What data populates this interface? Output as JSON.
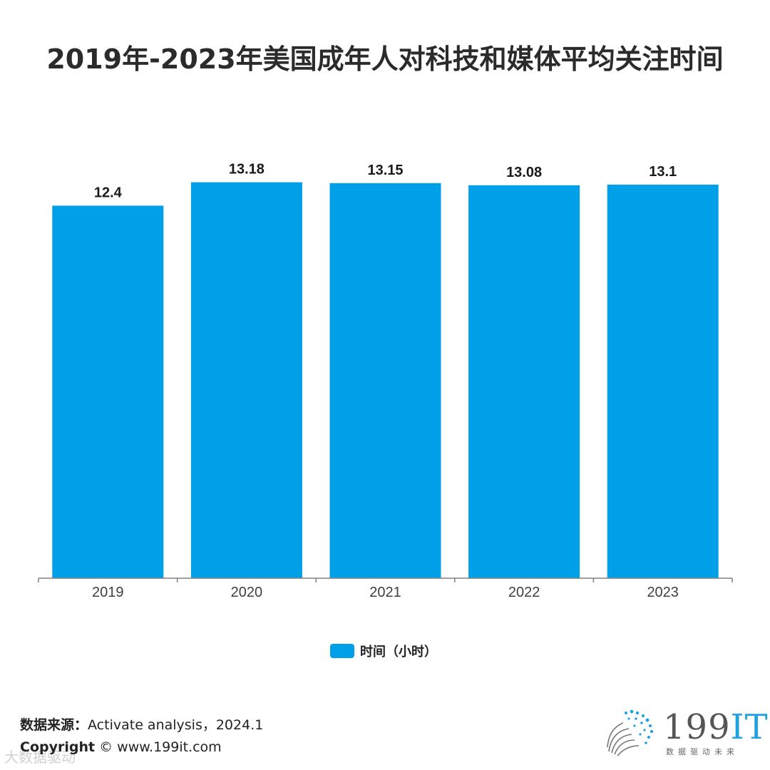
{
  "title": "2019年-2023年美国成年人对科技和媒体平均关注时间",
  "chart_data": {
    "type": "bar",
    "title": "2019年-2023年美国成年人对科技和媒体平均关注时间",
    "categories": [
      "2019",
      "2020",
      "2021",
      "2022",
      "2023"
    ],
    "series": [
      {
        "name": "时间（小时）",
        "values": [
          12.4,
          13.18,
          13.15,
          13.08,
          13.1
        ],
        "labels": [
          "12.4",
          "13.18",
          "13.15",
          "13.08",
          "13.1"
        ]
      }
    ],
    "xlabel": "",
    "ylabel": "",
    "ylim": [
      0,
      14.5
    ],
    "grid": false,
    "legend": "bottom-center",
    "color": "#00a0e9"
  },
  "legend": {
    "label": "时间（小时）"
  },
  "footer": {
    "source_label": "数据来源：",
    "source_text": "Activate analysis，2024.1",
    "copyright_label": "Copyright",
    "copyright_text": "©  www.199it.com",
    "watermark": "大数据驱动"
  },
  "logo": {
    "name": "199",
    "suffix": "IT",
    "tagline": "数据驱动未来",
    "icon": "dots-logo-icon"
  }
}
